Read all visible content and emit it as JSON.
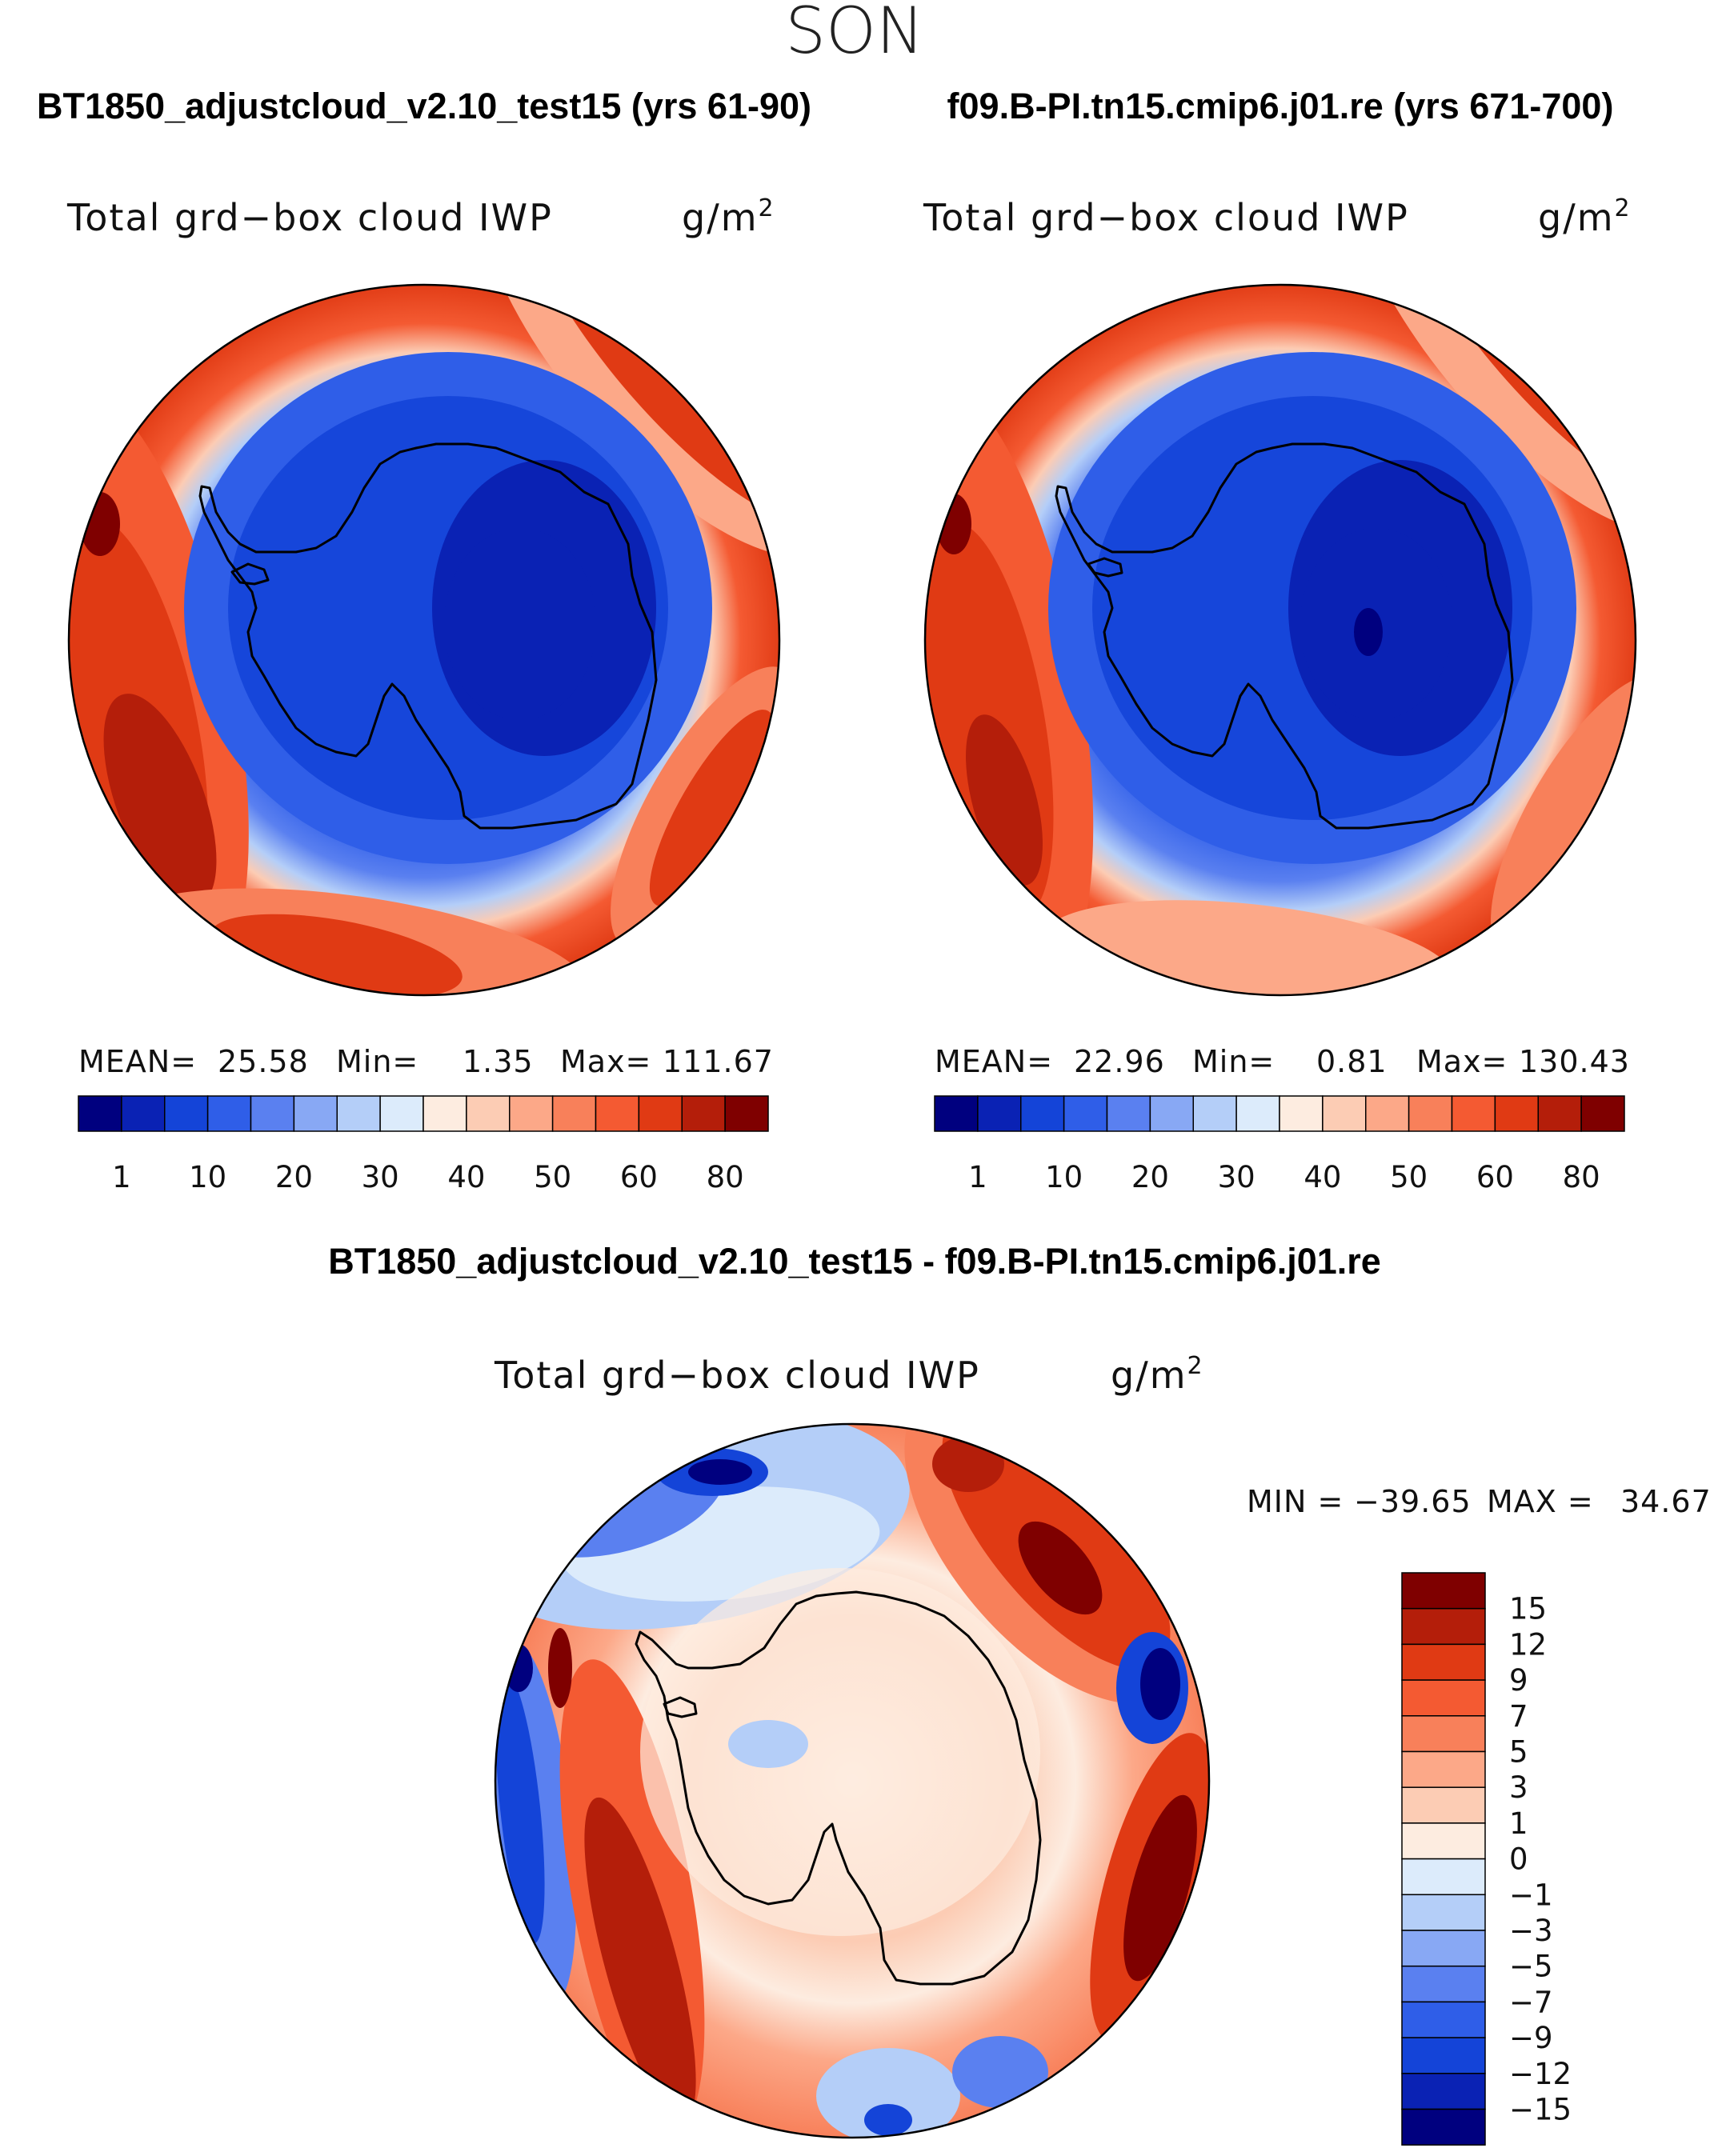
{
  "season": "SON",
  "panels": [
    {
      "case_title": "BT1850_adjustcloud_v2.10_test15 (yrs 61-90)",
      "variable": "Total grd−box cloud IWP",
      "units": "g/m",
      "units_exp": "2",
      "mean_label": "MEAN=",
      "mean": "25.58",
      "min_label": "Min=",
      "min": "1.35",
      "max_label": "Max=",
      "max": "111.67"
    },
    {
      "case_title": "f09.B-PI.tn15.cmip6.j01.re (yrs 671-700)",
      "variable": "Total grd−box cloud IWP",
      "units": "g/m",
      "units_exp": "2",
      "mean_label": "MEAN=",
      "mean": "22.96",
      "min_label": "Min=",
      "min": "0.81",
      "max_label": "Max=",
      "max": "130.43"
    }
  ],
  "colorbar": {
    "ticks": [
      "1",
      "10",
      "20",
      "30",
      "40",
      "50",
      "60",
      "80"
    ],
    "colors": [
      "#00007f",
      "#0a22b4",
      "#1444d8",
      "#2f5ee8",
      "#5a80f0",
      "#88a8f4",
      "#b4cef8",
      "#dcebfb",
      "#fdece0",
      "#fcccb4",
      "#fca888",
      "#f8805a",
      "#f45a32",
      "#e03a14",
      "#b41e0a",
      "#7f0000"
    ]
  },
  "diff": {
    "title": "BT1850_adjustcloud_v2.10_test15 - f09.B-PI.tn15.cmip6.j01.re",
    "variable": "Total grd−box cloud IWP",
    "units": "g/m",
    "units_exp": "2",
    "min_label": "MIN =",
    "min": "−39.65",
    "max_label": "MAX =",
    "max": "34.67",
    "colorbar": {
      "labels": [
        "15",
        "12",
        "9",
        "7",
        "5",
        "3",
        "1",
        "0",
        "−1",
        "−3",
        "−5",
        "−7",
        "−9",
        "−12",
        "−15"
      ],
      "colors": [
        "#7f0000",
        "#b41e0a",
        "#e03a14",
        "#f45a32",
        "#f8805a",
        "#fca888",
        "#fcccb4",
        "#fdece0",
        "#dcebfb",
        "#b4cef8",
        "#88a8f4",
        "#5a80f0",
        "#2f5ee8",
        "#1444d8",
        "#0a22b4",
        "#00007f"
      ]
    }
  }
}
